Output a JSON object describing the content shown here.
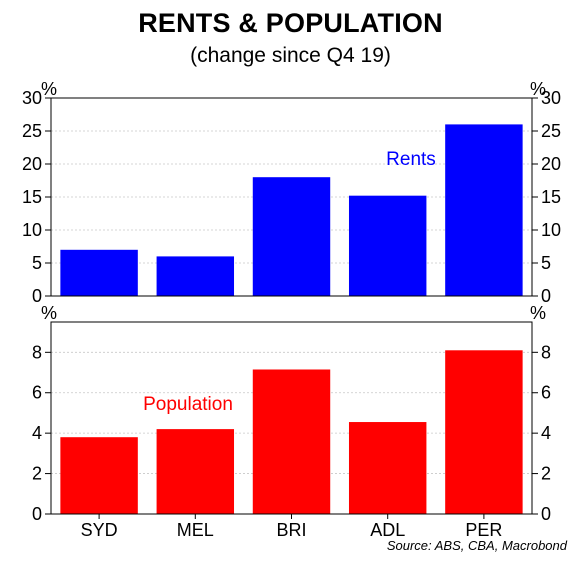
{
  "chart_data": {
    "type": "bar",
    "title": "RENTS & POPULATION",
    "subtitle": "(change since Q4 19)",
    "source": "Source: ABS, CBA, Macrobond",
    "categories": [
      "SYD",
      "MEL",
      "BRI",
      "ADL",
      "PER"
    ],
    "panels": [
      {
        "name": "Rents",
        "unit": "%",
        "color": "#0000ff",
        "label_color": "#0000ff",
        "values": [
          7.0,
          6.0,
          18.0,
          15.2,
          26.0
        ],
        "ylim": [
          0,
          30
        ],
        "ticks": [
          "0",
          "5",
          "10",
          "15",
          "20",
          "25",
          "30"
        ],
        "legend": "inside, upper-right"
      },
      {
        "name": "Population",
        "unit": "%",
        "color": "#ff0000",
        "label_color": "#ff0000",
        "values": [
          3.8,
          4.2,
          7.15,
          4.55,
          8.1
        ],
        "ylim": [
          0,
          9.5
        ],
        "ticks": [
          "0",
          "2",
          "4",
          "6",
          "8"
        ],
        "legend": "inside, upper-left"
      }
    ],
    "grid": true
  }
}
